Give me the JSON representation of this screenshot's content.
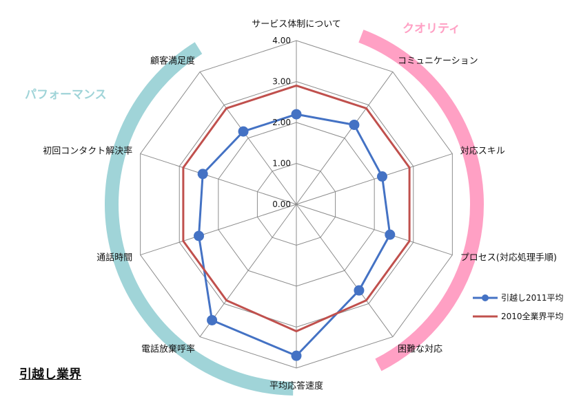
{
  "chart_data": {
    "type": "radar",
    "axes": [
      "サービス体制について",
      "コミュニケーション",
      "対応スキル",
      "プロセス(対応処理手順)",
      "困難な対応",
      "平均応答速度",
      "電話放棄呼率",
      "通話時間",
      "初回コンタクト解決率",
      "顧客満足度"
    ],
    "ticks": [
      "0.00",
      "1.00",
      "2.00",
      "3.00",
      "4.00"
    ],
    "rmax": 4,
    "series": [
      {
        "name": "引越し2011平均",
        "values": [
          2.2,
          2.4,
          2.2,
          2.4,
          2.6,
          3.7,
          3.5,
          2.5,
          2.4,
          2.2
        ],
        "color": "#4472C4"
      },
      {
        "name": "2010全業界平均",
        "values": [
          2.9,
          2.9,
          2.9,
          2.9,
          2.9,
          3.1,
          2.9,
          2.9,
          2.9,
          2.9
        ],
        "color": "#C0504D"
      }
    ],
    "groups": [
      {
        "label": "クオリティ",
        "color": "#FFA0C4"
      },
      {
        "label": "パフォーマンス",
        "color": "#A0D4D8"
      }
    ],
    "legend_position": "right"
  },
  "page_title": "引越し業界"
}
